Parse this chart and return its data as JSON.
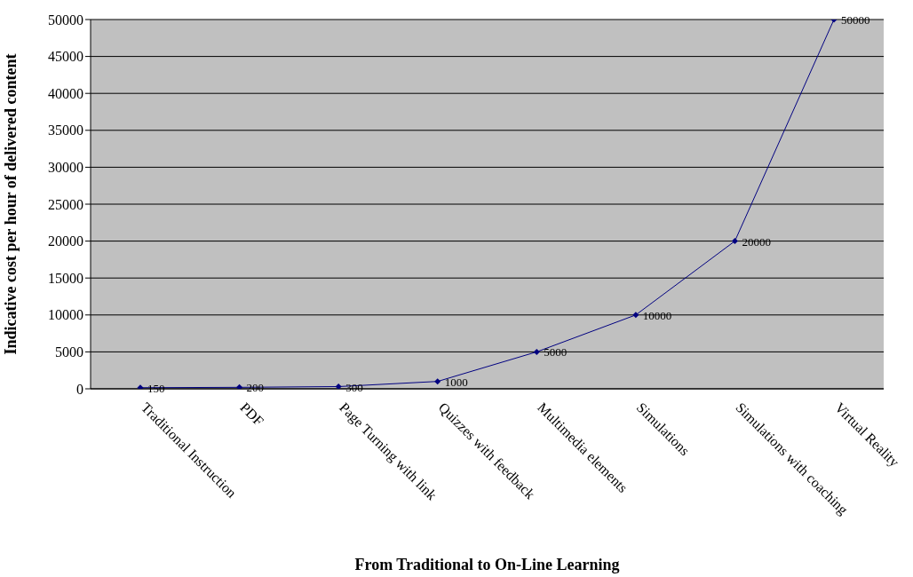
{
  "chart_data": {
    "type": "line",
    "xlabel": "From Traditional to On-Line Learning",
    "ylabel": "Indicative cost per hour of delivered content",
    "categories": [
      "Traditional Instruction",
      "PDF",
      "Page Turning with link",
      "Quizzes with feedback",
      "Multimedia elements",
      "Simulations",
      "Simulations with coaching",
      "Virtual Reality"
    ],
    "series": [
      {
        "color": "#000080",
        "values": [
          150,
          200,
          300,
          1000,
          5000,
          10000,
          20000,
          50000
        ]
      }
    ],
    "ylim": [
      0,
      50000
    ],
    "yticks": [
      0,
      5000,
      10000,
      15000,
      20000,
      25000,
      30000,
      35000,
      40000,
      45000,
      50000
    ],
    "grid": "y",
    "legend": false,
    "marker": "diamond",
    "line_style": "solid",
    "data_labels": true
  }
}
